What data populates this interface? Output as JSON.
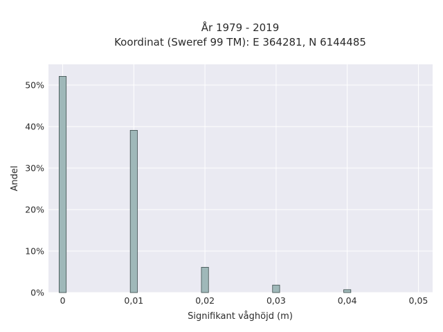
{
  "chart_data": {
    "type": "bar",
    "title_line1": "År 1979 - 2019",
    "title_line2": "Koordinat (Sweref 99 TM): E 364281, N 6144485",
    "xlabel": "Signifikant våghöjd (m)",
    "ylabel": "Andel",
    "x": [
      0,
      0.01,
      0.02,
      0.03,
      0.04
    ],
    "values": [
      0.521,
      0.391,
      0.061,
      0.018,
      0.007
    ],
    "xlim": [
      -0.002,
      0.052
    ],
    "ylim": [
      0,
      0.55
    ],
    "x_ticks": [
      {
        "value": 0,
        "label": "0"
      },
      {
        "value": 0.01,
        "label": "0,01"
      },
      {
        "value": 0.02,
        "label": "0,02"
      },
      {
        "value": 0.03,
        "label": "0,03"
      },
      {
        "value": 0.04,
        "label": "0,04"
      },
      {
        "value": 0.05,
        "label": "0,05"
      }
    ],
    "y_ticks": [
      {
        "value": 0,
        "label": "0%"
      },
      {
        "value": 0.1,
        "label": "10%"
      },
      {
        "value": 0.2,
        "label": "20%"
      },
      {
        "value": 0.3,
        "label": "30%"
      },
      {
        "value": 0.4,
        "label": "40%"
      },
      {
        "value": 0.5,
        "label": "50%"
      }
    ],
    "bar_width_data": 0.001,
    "grid": true,
    "colors": {
      "plot_background": "#eaeaf2",
      "grid": "#ffffff",
      "bar_fill": "#9fb8b9",
      "bar_stroke": "#3a4a4a"
    }
  }
}
